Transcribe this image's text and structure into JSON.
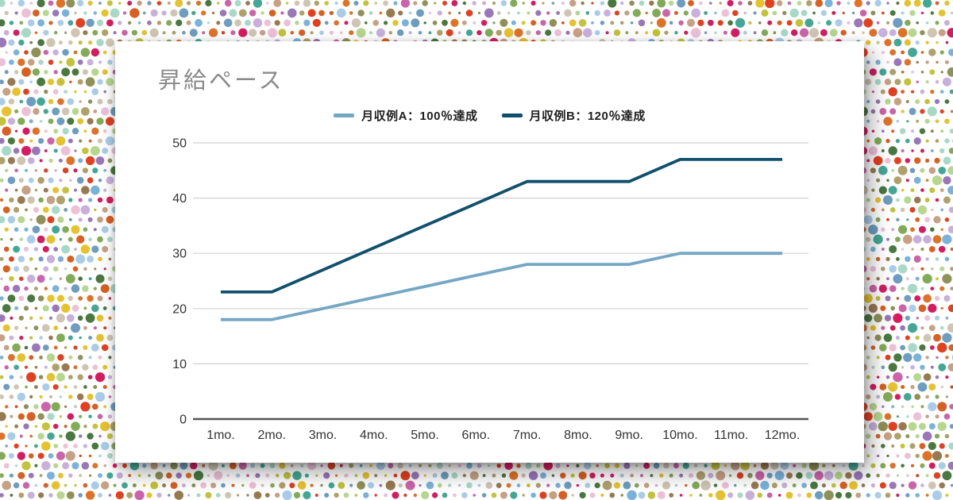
{
  "chart_data": {
    "type": "line",
    "title": "昇給ペース",
    "categories": [
      "1mo.",
      "2mo.",
      "3mo.",
      "4mo.",
      "5mo.",
      "6mo.",
      "7mo.",
      "8mo.",
      "9mo.",
      "10mo.",
      "11mo.",
      "12mo."
    ],
    "series": [
      {
        "name": "月収例A：100％達成",
        "color": "#74a7c4",
        "values": [
          18,
          18,
          20,
          22,
          24,
          26,
          28,
          28,
          28,
          30,
          30,
          30
        ]
      },
      {
        "name": "月収例B：120％達成",
        "color": "#11506d",
        "values": [
          23,
          23,
          27,
          31,
          35,
          39,
          43,
          43,
          43,
          47,
          47,
          47
        ]
      }
    ],
    "xlabel": "",
    "ylabel": "",
    "ylim": [
      0,
      50
    ],
    "ytick_step": 10,
    "grid": true,
    "legend_position": "top",
    "grid_color": "#d0d0d0",
    "axis_color": "#555555",
    "tick_color": "#333333",
    "title_color": "#8a8a8a"
  },
  "dot_pattern": {
    "background": "#ffffff",
    "palette": [
      "#e2401f",
      "#d81b60",
      "#e07227",
      "#d96020",
      "#e7c22f",
      "#c3c23a",
      "#b5d78e",
      "#82ab58",
      "#49793f",
      "#44a795",
      "#a8d9c6",
      "#79b3dc",
      "#a9cce8",
      "#6d9dc0",
      "#9a77b8",
      "#c9b0dc",
      "#cb64aa",
      "#edc0d8",
      "#c7a183",
      "#997a50",
      "#b0a06a",
      "#8f9158",
      "#cfc5b2"
    ]
  }
}
